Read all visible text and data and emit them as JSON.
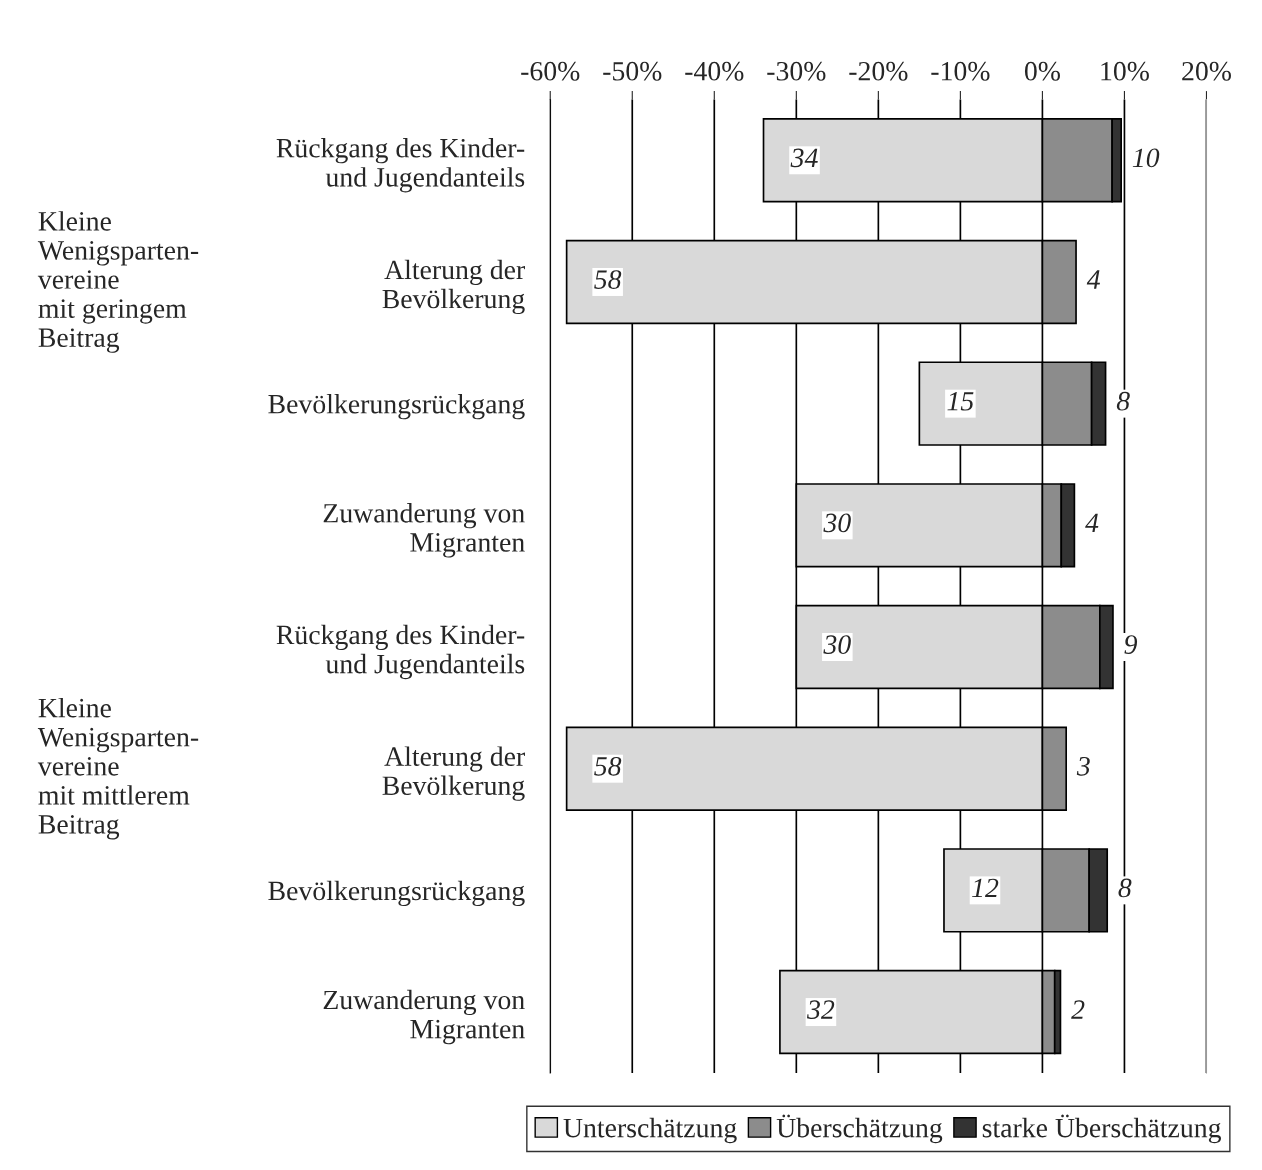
{
  "chart_data": {
    "type": "bar",
    "orientation": "horizontal",
    "stacked": true,
    "categories": [
      "Rückgang des Kinder-\nund Jugendanteils",
      "Alterung der\nBevölkerung",
      "Bevölkerungsrückgang",
      "Zuwanderung von\nMigranten",
      "Rückgang des Kinder-\nund Jugendanteils",
      "Alterung der\nBevölkerung",
      "Bevölkerungsrückgang",
      "Zuwanderung von\nMigranten"
    ],
    "series": [
      {
        "name": "Unterschätzung",
        "color": "#d9d9d9",
        "values": [
          -34,
          -58,
          -15,
          -30,
          -30,
          -58,
          -12,
          -32
        ]
      },
      {
        "name": "Überschätzung",
        "color": "#8c8c8c",
        "values": [
          8.5,
          4.1,
          6.0,
          2.3,
          7.0,
          2.9,
          5.7,
          1.5
        ]
      },
      {
        "name": "starke Überschätzung",
        "color": "#333333",
        "values": [
          1.1,
          null,
          1.7,
          1.6,
          1.6,
          null,
          2.2,
          0.7
        ]
      }
    ],
    "annotations": [
      "Kleine\nWenigsparten-\nvereine\nmit geringem\nBeitrag",
      "Kleine\nWenigsparten-\nvereine\nmit mittlerem\nBeitrag",
      "34",
      "10",
      "58",
      "4",
      "15",
      "8",
      "30",
      "4",
      "30",
      "9",
      "58",
      "3",
      "12",
      "8",
      "32",
      "2"
    ],
    "xlim": [
      -60,
      20
    ],
    "xticks": [
      {
        "value": -60,
        "label": "-60%"
      },
      {
        "value": -50,
        "label": "-50%"
      },
      {
        "value": -40,
        "label": "-40%"
      },
      {
        "value": -30,
        "label": "-30%"
      },
      {
        "value": -20,
        "label": "-20%"
      },
      {
        "value": -10,
        "label": "-10%"
      },
      {
        "value": 0,
        "label": "0%"
      },
      {
        "value": 10,
        "label": "10%"
      },
      {
        "value": 20,
        "label": "20%"
      }
    ],
    "grid": "x",
    "legend": "bottom"
  }
}
